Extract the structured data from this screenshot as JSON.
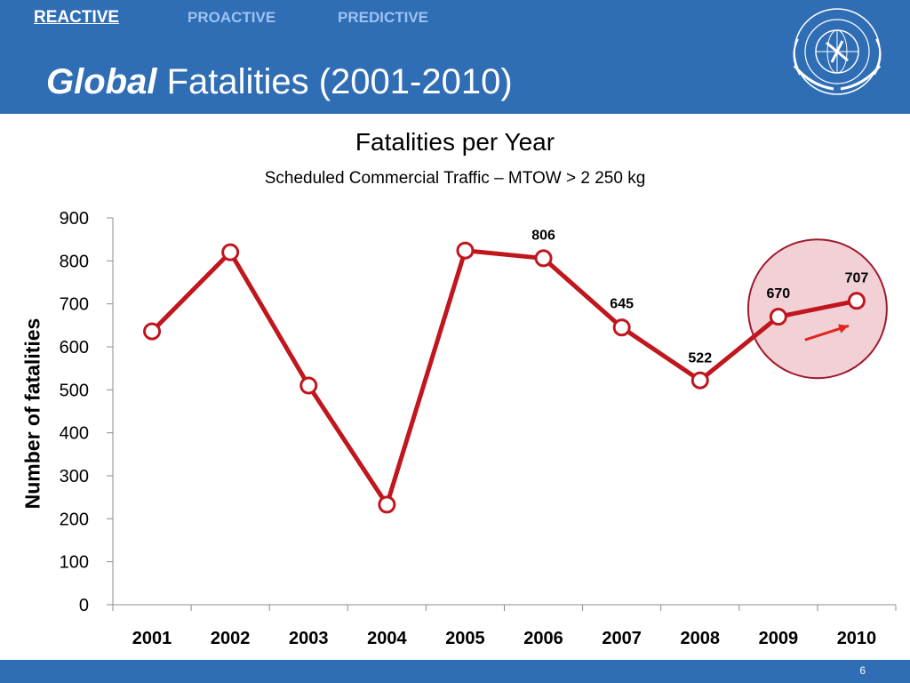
{
  "header": {
    "tabs": [
      {
        "label": "REACTIVE",
        "active": true
      },
      {
        "label": "PROACTIVE",
        "active": false
      },
      {
        "label": "PREDICTIVE",
        "active": false
      }
    ],
    "title_emphasis": "Global",
    "title_rest": " Fatalities (2001-2010)",
    "logo_icon": "icao-emblem-icon"
  },
  "footer": {
    "page_number": "6"
  },
  "colors": {
    "header_bg": "#2f6db5",
    "series": "#c0161d",
    "highlight_fill": "#f1d1d6",
    "highlight_stroke": "#a1182e"
  },
  "chart_data": {
    "type": "line",
    "title": "Fatalities per Year",
    "subtitle": "Scheduled Commercial Traffic – MTOW > 2 250 kg",
    "xlabel": "",
    "ylabel": "Number of fatalities",
    "categories": [
      "2001",
      "2002",
      "2003",
      "2004",
      "2005",
      "2006",
      "2007",
      "2008",
      "2009",
      "2010"
    ],
    "series": [
      {
        "values": [
          636,
          820,
          510,
          233,
          824,
          806,
          645,
          522,
          670,
          707
        ]
      }
    ],
    "data_labels": [
      null,
      null,
      null,
      null,
      null,
      "806",
      "645",
      "522",
      "670",
      "707"
    ],
    "ylim": [
      0,
      900
    ],
    "yticks": [
      0,
      100,
      200,
      300,
      400,
      500,
      600,
      700,
      800,
      900
    ],
    "grid": false,
    "annotations": [
      "highlight circle around 2009-2010",
      "upward arrow indicating increase"
    ]
  }
}
